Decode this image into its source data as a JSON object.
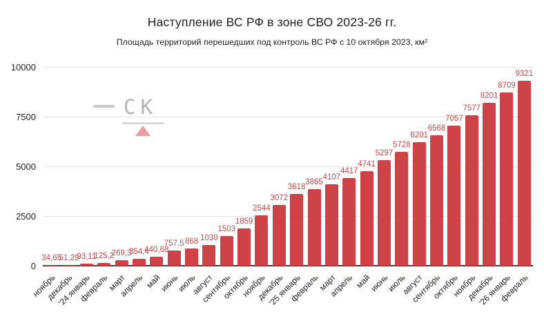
{
  "header": {
    "title": "Наступление ВС РФ в зоне СВО 2023-26 гг.",
    "subtitle": "Площадь территорий перешедших под контроль ВС РФ с 10 октября 2023, км²"
  },
  "watermark": {
    "text": "СК",
    "color": "#b3b3b9",
    "triangle_color": "#ef9b9f"
  },
  "colors": {
    "bar": "#cd4246",
    "value_label": "#c5494d",
    "grid": "#e6e6e6",
    "axis": "#3f3f3f",
    "tick_text": "#1f1f1f"
  },
  "chart_data": {
    "type": "bar",
    "title": "Наступление ВС РФ в зоне СВО 2023-26 гг.",
    "subtitle": "Площадь территорий перешедших под контроль ВС РФ с 10 октября 2023, км²",
    "categories": [
      "ноябрь",
      "декабрь",
      "'24 январь",
      "февраль",
      "март",
      "апрель",
      "май",
      "июнь",
      "июль",
      "август",
      "сентябрь",
      "октябрь",
      "ноябрь",
      "декабрь",
      "'25 январь",
      "февраль",
      "март",
      "апрель",
      "май",
      "июнь",
      "июль",
      "август",
      "сентябрь",
      "октябрь",
      "ноябрь",
      "декабрь",
      "'26 январь",
      "февраль"
    ],
    "values": [
      34.65,
      51.29,
      93.11,
      125.2,
      269.3,
      354.4,
      440.68,
      757.5,
      868,
      1030,
      1503,
      1859,
      2544,
      3072,
      3618,
      3865,
      4107,
      4417,
      4741,
      5297,
      5728,
      6201,
      6568,
      7057,
      7577,
      8201,
      8709,
      9321
    ],
    "value_labels": [
      "34,65",
      "51,29",
      "93,11",
      "125,2",
      "269,3",
      "354,4",
      "440,68",
      "757,5",
      "868",
      "1030",
      "1503",
      "1859",
      "2544",
      "3072",
      "3618",
      "3865",
      "4107",
      "4417",
      "4741",
      "5297",
      "5728",
      "6201",
      "6568",
      "7057",
      "7577",
      "8201",
      "8709",
      "9321"
    ],
    "xlabel": "",
    "ylabel": "",
    "ylim": [
      0,
      10000
    ],
    "yticks": [
      0,
      2500,
      5000,
      7500,
      10000
    ],
    "grid": true,
    "legend": "none",
    "x_label_rotation": -45,
    "bar_color": "#cd4246"
  }
}
